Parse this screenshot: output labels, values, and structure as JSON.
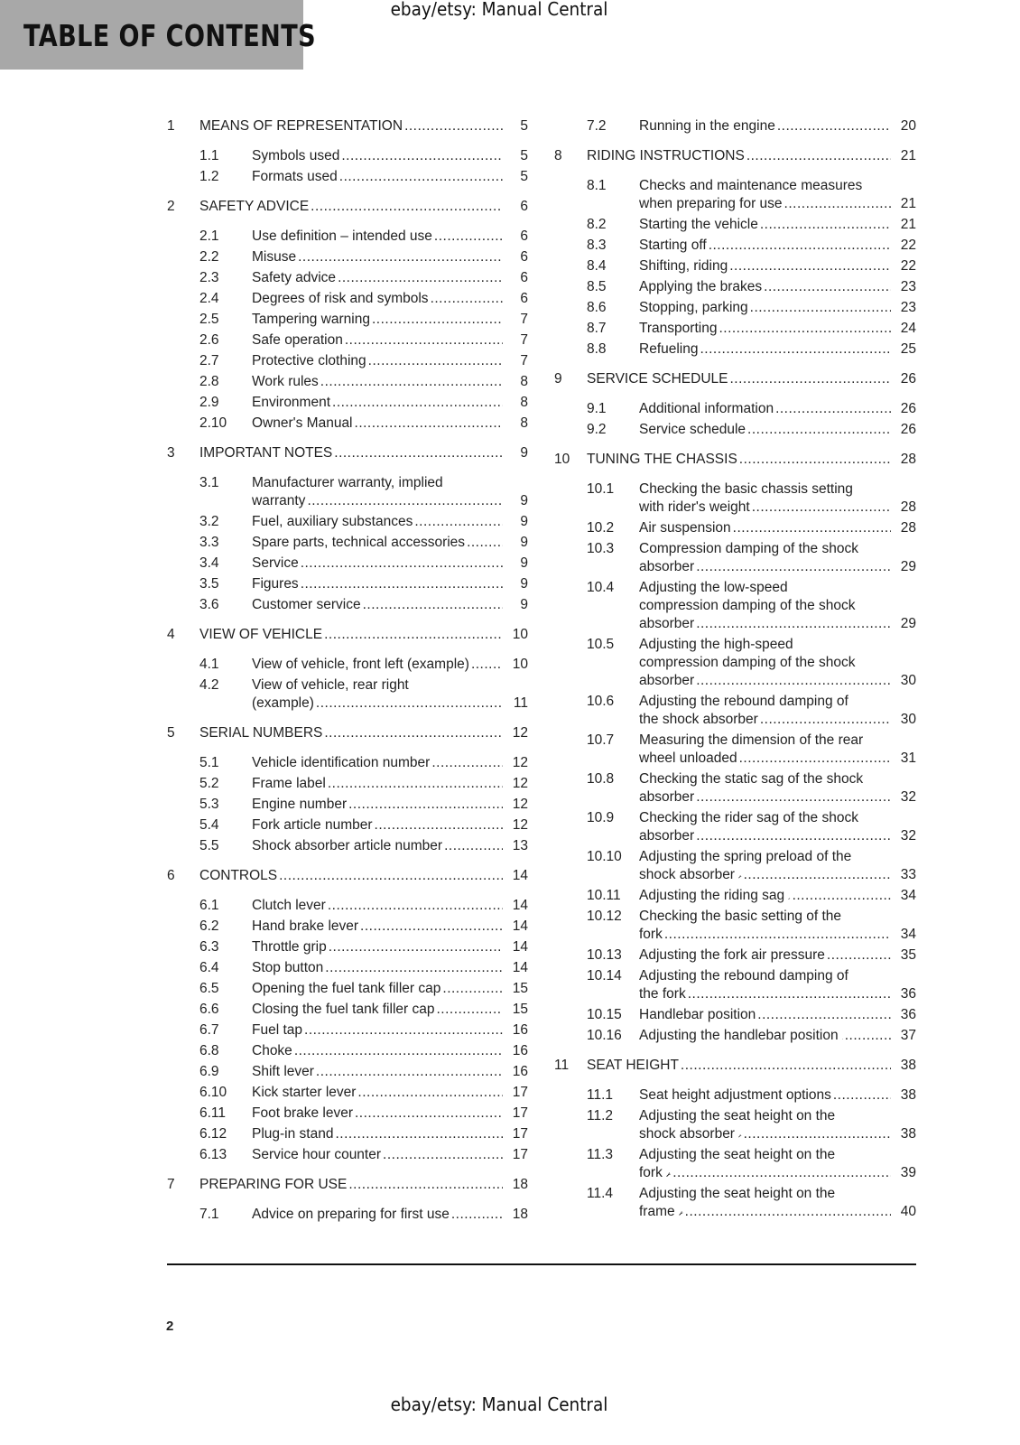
{
  "header": {
    "title": "TABLE OF CONTENTS",
    "watermark_top": "ebay/etsy: Manual Central",
    "watermark_bottom": "ebay/etsy: Manual Central"
  },
  "footer": {
    "page_number": "2"
  },
  "columns": [
    [
      {
        "num": "1",
        "type": "chapter",
        "lines": [
          "MEANS OF REPRESENTATION"
        ],
        "page": "5"
      },
      {
        "num": "1.1",
        "type": "sub",
        "lines": [
          "Symbols used"
        ],
        "page": "5"
      },
      {
        "num": "1.2",
        "type": "sub",
        "lines": [
          "Formats used"
        ],
        "page": "5"
      },
      {
        "num": "2",
        "type": "chapter",
        "lines": [
          "SAFETY ADVICE"
        ],
        "page": "6"
      },
      {
        "num": "2.1",
        "type": "sub",
        "lines": [
          "Use definition – intended use"
        ],
        "page": "6"
      },
      {
        "num": "2.2",
        "type": "sub",
        "lines": [
          "Misuse"
        ],
        "page": "6"
      },
      {
        "num": "2.3",
        "type": "sub",
        "lines": [
          "Safety advice"
        ],
        "page": "6"
      },
      {
        "num": "2.4",
        "type": "sub",
        "lines": [
          "Degrees of risk and symbols"
        ],
        "page": "6"
      },
      {
        "num": "2.5",
        "type": "sub",
        "lines": [
          "Tampering warning"
        ],
        "page": "7"
      },
      {
        "num": "2.6",
        "type": "sub",
        "lines": [
          "Safe operation"
        ],
        "page": "7"
      },
      {
        "num": "2.7",
        "type": "sub",
        "lines": [
          "Protective clothing"
        ],
        "page": "7"
      },
      {
        "num": "2.8",
        "type": "sub",
        "lines": [
          "Work rules"
        ],
        "page": "8"
      },
      {
        "num": "2.9",
        "type": "sub",
        "lines": [
          "Environment"
        ],
        "page": "8"
      },
      {
        "num": "2.10",
        "type": "sub",
        "lines": [
          "Owner's Manual"
        ],
        "page": "8"
      },
      {
        "num": "3",
        "type": "chapter",
        "lines": [
          "IMPORTANT NOTES"
        ],
        "page": "9"
      },
      {
        "num": "3.1",
        "type": "sub",
        "lines": [
          "Manufacturer warranty, implied",
          "warranty"
        ],
        "page": "9"
      },
      {
        "num": "3.2",
        "type": "sub",
        "lines": [
          "Fuel, auxiliary substances"
        ],
        "page": "9"
      },
      {
        "num": "3.3",
        "type": "sub",
        "lines": [
          "Spare parts, technical accessories"
        ],
        "page": "9"
      },
      {
        "num": "3.4",
        "type": "sub",
        "lines": [
          "Service"
        ],
        "page": "9"
      },
      {
        "num": "3.5",
        "type": "sub",
        "lines": [
          "Figures"
        ],
        "page": "9"
      },
      {
        "num": "3.6",
        "type": "sub",
        "lines": [
          "Customer service"
        ],
        "page": "9"
      },
      {
        "num": "4",
        "type": "chapter",
        "lines": [
          "VIEW OF VEHICLE"
        ],
        "page": "10"
      },
      {
        "num": "4.1",
        "type": "sub",
        "lines": [
          "View of vehicle, front left (example)"
        ],
        "page": "10"
      },
      {
        "num": "4.2",
        "type": "sub",
        "lines": [
          "View of vehicle, rear right",
          "(example)"
        ],
        "page": "11"
      },
      {
        "num": "5",
        "type": "chapter",
        "lines": [
          "SERIAL NUMBERS"
        ],
        "page": "12"
      },
      {
        "num": "5.1",
        "type": "sub",
        "lines": [
          "Vehicle identification number"
        ],
        "page": "12"
      },
      {
        "num": "5.2",
        "type": "sub",
        "lines": [
          "Frame label"
        ],
        "page": "12"
      },
      {
        "num": "5.3",
        "type": "sub",
        "lines": [
          "Engine number"
        ],
        "page": "12"
      },
      {
        "num": "5.4",
        "type": "sub",
        "lines": [
          "Fork article number"
        ],
        "page": "12"
      },
      {
        "num": "5.5",
        "type": "sub",
        "lines": [
          "Shock absorber article number"
        ],
        "page": "13"
      },
      {
        "num": "6",
        "type": "chapter",
        "lines": [
          "CONTROLS"
        ],
        "page": "14"
      },
      {
        "num": "6.1",
        "type": "sub",
        "lines": [
          "Clutch lever"
        ],
        "page": "14"
      },
      {
        "num": "6.2",
        "type": "sub",
        "lines": [
          "Hand brake lever"
        ],
        "page": "14"
      },
      {
        "num": "6.3",
        "type": "sub",
        "lines": [
          "Throttle grip"
        ],
        "page": "14"
      },
      {
        "num": "6.4",
        "type": "sub",
        "lines": [
          "Stop button"
        ],
        "page": "14"
      },
      {
        "num": "6.5",
        "type": "sub",
        "lines": [
          "Opening the fuel tank filler cap"
        ],
        "page": "15"
      },
      {
        "num": "6.6",
        "type": "sub",
        "lines": [
          "Closing the fuel tank filler cap"
        ],
        "page": "15"
      },
      {
        "num": "6.7",
        "type": "sub",
        "lines": [
          "Fuel tap"
        ],
        "page": "16"
      },
      {
        "num": "6.8",
        "type": "sub",
        "lines": [
          "Choke"
        ],
        "page": "16"
      },
      {
        "num": "6.9",
        "type": "sub",
        "lines": [
          "Shift lever"
        ],
        "page": "16"
      },
      {
        "num": "6.10",
        "type": "sub",
        "lines": [
          "Kick starter lever"
        ],
        "page": "17"
      },
      {
        "num": "6.11",
        "type": "sub",
        "lines": [
          "Foot brake lever"
        ],
        "page": "17"
      },
      {
        "num": "6.12",
        "type": "sub",
        "lines": [
          "Plug-in stand"
        ],
        "page": "17"
      },
      {
        "num": "6.13",
        "type": "sub",
        "lines": [
          "Service hour counter"
        ],
        "page": "17"
      },
      {
        "num": "7",
        "type": "chapter",
        "lines": [
          "PREPARING FOR USE"
        ],
        "page": "18"
      },
      {
        "num": "7.1",
        "type": "sub",
        "lines": [
          "Advice on preparing for first use"
        ],
        "page": "18"
      }
    ],
    [
      {
        "num": "7.2",
        "type": "sub",
        "lines": [
          "Running in the engine"
        ],
        "page": "20"
      },
      {
        "num": "8",
        "type": "chapter",
        "lines": [
          "RIDING INSTRUCTIONS"
        ],
        "page": "21"
      },
      {
        "num": "8.1",
        "type": "sub",
        "lines": [
          "Checks and maintenance measures",
          "when preparing for use"
        ],
        "page": "21"
      },
      {
        "num": "8.2",
        "type": "sub",
        "lines": [
          "Starting the vehicle"
        ],
        "page": "21"
      },
      {
        "num": "8.3",
        "type": "sub",
        "lines": [
          "Starting off"
        ],
        "page": "22"
      },
      {
        "num": "8.4",
        "type": "sub",
        "lines": [
          "Shifting, riding"
        ],
        "page": "22"
      },
      {
        "num": "8.5",
        "type": "sub",
        "lines": [
          "Applying the brakes"
        ],
        "page": "23"
      },
      {
        "num": "8.6",
        "type": "sub",
        "lines": [
          "Stopping, parking"
        ],
        "page": "23"
      },
      {
        "num": "8.7",
        "type": "sub",
        "lines": [
          "Transporting"
        ],
        "page": "24"
      },
      {
        "num": "8.8",
        "type": "sub",
        "lines": [
          "Refueling"
        ],
        "page": "25"
      },
      {
        "num": "9",
        "type": "chapter",
        "lines": [
          "SERVICE SCHEDULE"
        ],
        "page": "26"
      },
      {
        "num": "9.1",
        "type": "sub",
        "lines": [
          "Additional information"
        ],
        "page": "26"
      },
      {
        "num": "9.2",
        "type": "sub",
        "lines": [
          "Service schedule"
        ],
        "page": "26"
      },
      {
        "num": "10",
        "type": "chapter",
        "lines": [
          "TUNING THE CHASSIS"
        ],
        "page": "28"
      },
      {
        "num": "10.1",
        "type": "sub",
        "lines": [
          "Checking the basic chassis setting",
          "with rider's weight"
        ],
        "page": "28"
      },
      {
        "num": "10.2",
        "type": "sub",
        "lines": [
          "Air suspension"
        ],
        "page": "28"
      },
      {
        "num": "10.3",
        "type": "sub",
        "lines": [
          "Compression damping of the shock",
          "absorber"
        ],
        "page": "29"
      },
      {
        "num": "10.4",
        "type": "sub",
        "lines": [
          "Adjusting the low-speed",
          "compression damping of the shock",
          "absorber"
        ],
        "page": "29"
      },
      {
        "num": "10.5",
        "type": "sub",
        "lines": [
          "Adjusting the high-speed",
          "compression damping of the shock",
          "absorber"
        ],
        "page": "30"
      },
      {
        "num": "10.6",
        "type": "sub",
        "lines": [
          "Adjusting the rebound damping of",
          "the shock absorber"
        ],
        "page": "30"
      },
      {
        "num": "10.7",
        "type": "sub",
        "lines": [
          "Measuring the dimension of the rear",
          "wheel unloaded"
        ],
        "page": "31"
      },
      {
        "num": "10.8",
        "type": "sub",
        "lines": [
          "Checking the static sag of the shock",
          "absorber"
        ],
        "page": "32"
      },
      {
        "num": "10.9",
        "type": "sub",
        "lines": [
          "Checking the rider sag of the shock",
          "absorber"
        ],
        "page": "32"
      },
      {
        "num": "10.10",
        "type": "sub",
        "lines": [
          "Adjusting the spring preload of the",
          "shock absorber"
        ],
        "page": "33",
        "wrench": true
      },
      {
        "num": "10.11",
        "type": "sub",
        "lines": [
          "Adjusting the riding sag"
        ],
        "page": "34",
        "wrench": true
      },
      {
        "num": "10.12",
        "type": "sub",
        "lines": [
          "Checking the basic setting of the",
          "fork"
        ],
        "page": "34"
      },
      {
        "num": "10.13",
        "type": "sub",
        "lines": [
          "Adjusting the fork air pressure"
        ],
        "page": "35"
      },
      {
        "num": "10.14",
        "type": "sub",
        "lines": [
          "Adjusting the rebound damping of",
          "the fork"
        ],
        "page": "36"
      },
      {
        "num": "10.15",
        "type": "sub",
        "lines": [
          "Handlebar position"
        ],
        "page": "36"
      },
      {
        "num": "10.16",
        "type": "sub",
        "lines": [
          "Adjusting the handlebar position"
        ],
        "page": "37",
        "wrench": true
      },
      {
        "num": "11",
        "type": "chapter",
        "lines": [
          "SEAT HEIGHT"
        ],
        "page": "38"
      },
      {
        "num": "11.1",
        "type": "sub",
        "lines": [
          "Seat height adjustment options"
        ],
        "page": "38"
      },
      {
        "num": "11.2",
        "type": "sub",
        "lines": [
          "Adjusting the seat height on the",
          "shock absorber"
        ],
        "page": "38",
        "wrench": true
      },
      {
        "num": "11.3",
        "type": "sub",
        "lines": [
          "Adjusting the seat height on the",
          "fork"
        ],
        "page": "39",
        "wrench": true
      },
      {
        "num": "11.4",
        "type": "sub",
        "lines": [
          "Adjusting the seat height on the",
          "frame"
        ],
        "page": "40",
        "wrench": true
      }
    ]
  ]
}
